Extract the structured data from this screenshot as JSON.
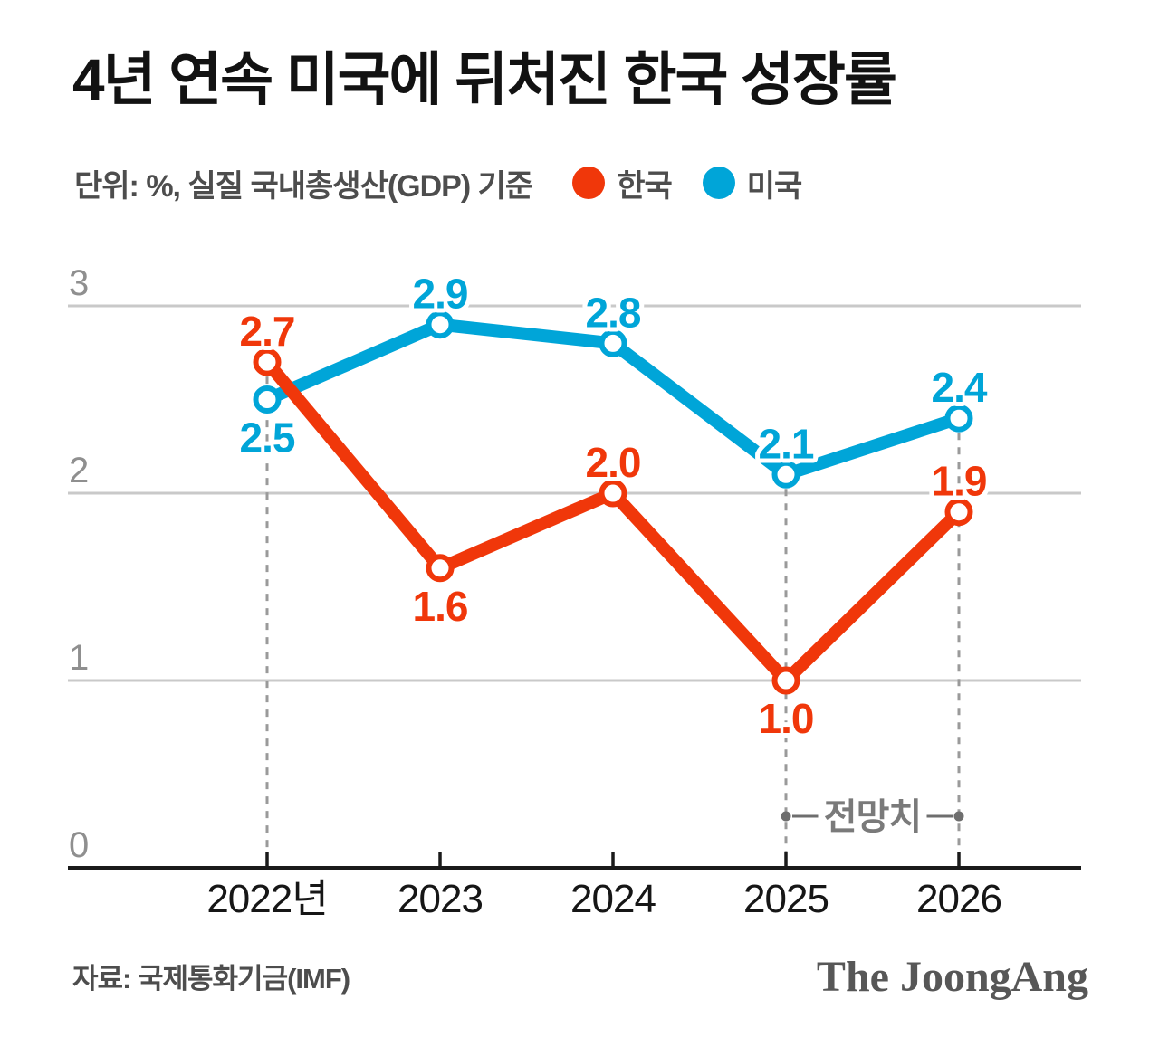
{
  "header": {
    "title": "4년 연속 미국에 뒤처진 한국 성장률",
    "unit_note": "단위: %, 실질 국내총생산(GDP) 기준"
  },
  "legend": {
    "items": [
      {
        "id": "korea",
        "label": "한국",
        "color": "#f0370a"
      },
      {
        "id": "us",
        "label": "미국",
        "color": "#00a5d8"
      }
    ]
  },
  "chart_data": {
    "type": "line",
    "categories": [
      "2022년",
      "2023",
      "2024",
      "2025",
      "2026"
    ],
    "series": [
      {
        "id": "us",
        "name": "미국",
        "color": "#00a5d8",
        "values": [
          2.5,
          2.9,
          2.8,
          2.1,
          2.4
        ],
        "label_placement": [
          "below",
          "above",
          "above",
          "above",
          "above"
        ]
      },
      {
        "id": "korea",
        "name": "한국",
        "color": "#f0370a",
        "values": [
          2.7,
          1.6,
          2.0,
          1.0,
          1.9
        ],
        "label_placement": [
          "above",
          "below",
          "above",
          "below",
          "above"
        ]
      }
    ],
    "y_ticks": [
      "0",
      "1",
      "2",
      "3"
    ],
    "y_gridlines": [
      1,
      2,
      3
    ],
    "ylim": [
      0,
      3.2
    ],
    "grid": "horizontal",
    "legend_position": "top",
    "forecast_guides": [
      {
        "category_index": 0,
        "from_series": "korea"
      },
      {
        "category_index": 3,
        "from_series": "us"
      },
      {
        "category_index": 4,
        "from_series": "us"
      }
    ],
    "annotation": {
      "label": "전망치",
      "between": [
        3,
        4
      ]
    }
  },
  "footer": {
    "source": "자료: 국제통화기금(IMF)",
    "logo": "The JoongAng"
  },
  "colors": {
    "korea_red": "#f0370a",
    "us_blue": "#00a5d8",
    "gridline": "#c9c9c9",
    "axis": "#1a1a1a",
    "muted_text": "#4d4d4d"
  }
}
